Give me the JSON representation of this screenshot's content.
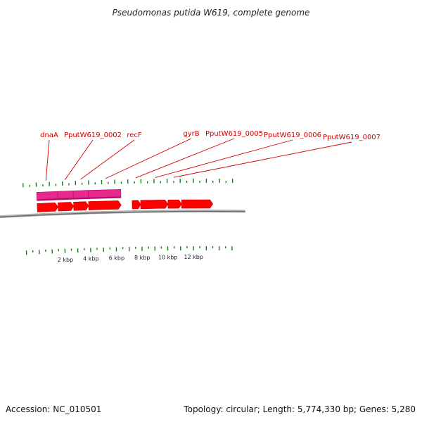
{
  "title": "Pseudomonas putida W619, complete genome",
  "footer": {
    "accession": "Accession: NC_010501",
    "summary": "Topology: circular; Length: 5,774,330 bp; Genes: 5,280"
  },
  "colors": {
    "cds": "#ff0000",
    "cds_dark": "#c40000",
    "gene": "#e8288c",
    "gene_dark": "#b0106a",
    "label": "#d40000",
    "tick": "#1a7a1a",
    "backbone": "#8c8c8c"
  },
  "scale": {
    "kbp_labels": [
      "2 kbp",
      "4 kbp",
      "6 kbp",
      "8 kbp",
      "10 kbp",
      "12 kbp"
    ]
  },
  "features": {
    "gene_track": [
      {
        "start": 0.0,
        "end": 1.6
      },
      {
        "start": 1.6,
        "end": 2.8
      },
      {
        "start": 2.8,
        "end": 3.95
      },
      {
        "start": 3.95,
        "end": 6.45
      }
    ],
    "cds_track": [
      {
        "start": 0.0,
        "end": 1.6
      },
      {
        "start": 1.6,
        "end": 2.8
      },
      {
        "start": 2.8,
        "end": 3.95
      },
      {
        "start": 3.95,
        "end": 6.45
      },
      {
        "start": 7.3,
        "end": 7.95
      },
      {
        "start": 7.95,
        "end": 10.05
      },
      {
        "start": 10.05,
        "end": 11.1
      },
      {
        "start": 11.1,
        "end": 13.5
      }
    ]
  },
  "labels": [
    {
      "text": "dnaA",
      "pos": 0.75
    },
    {
      "text": "PputW619_0002",
      "pos": 2.2
    },
    {
      "text": "recF",
      "pos": 3.4
    },
    {
      "text": "gyrB",
      "pos": 5.3
    },
    {
      "text": "PputW619_0005",
      "pos": 7.6
    },
    {
      "text": "PputW619_0006",
      "pos": 9.1
    },
    {
      "text": "PputW619_0007",
      "pos": 10.5
    }
  ]
}
